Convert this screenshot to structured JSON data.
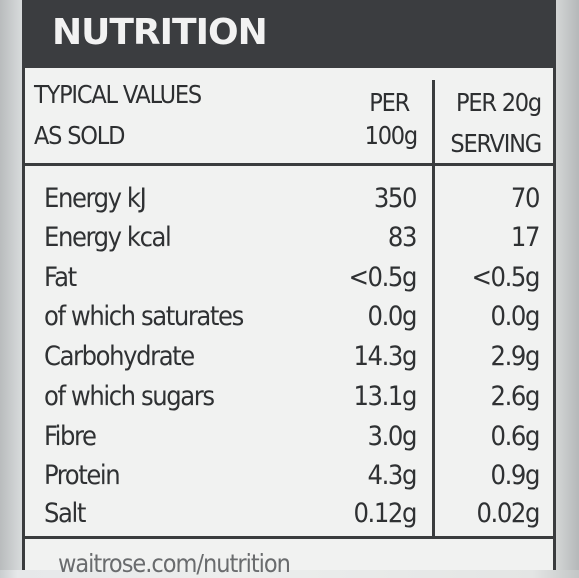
{
  "title": "NUTRITION",
  "header": {
    "col1_line1": "TYPICAL VALUES",
    "col1_line2": "AS SOLD",
    "col2_line1": "PER",
    "col2_line2": "100g",
    "col3_line1": "PER 20g",
    "col3_line2": "SERVING"
  },
  "rows": [
    {
      "nutrient": "Energy kJ",
      "per100": "350",
      "per_serving": "70"
    },
    {
      "nutrient": "Energy kcal",
      "per100": "83",
      "per_serving": "17"
    },
    {
      "nutrient": "Fat",
      "per100": "<0.5g",
      "per_serving": "<0.5g"
    },
    {
      "nutrient": "of which saturates",
      "per100": "0.0g",
      "per_serving": "0.0g"
    },
    {
      "nutrient": "Carbohydrate",
      "per100": "14.3g",
      "per_serving": "2.9g"
    },
    {
      "nutrient": "of which sugars",
      "per100": "13.1g",
      "per_serving": "2.6g"
    },
    {
      "nutrient": "Fibre",
      "per100": "3.0g",
      "per_serving": "0.6g"
    },
    {
      "nutrient": "Protein",
      "per100": "4.3g",
      "per_serving": "0.9g"
    },
    {
      "nutrient": "Salt",
      "per100": "0.12g",
      "per_serving": "0.02g"
    }
  ],
  "footer": "waitrose.com/nutrition"
}
